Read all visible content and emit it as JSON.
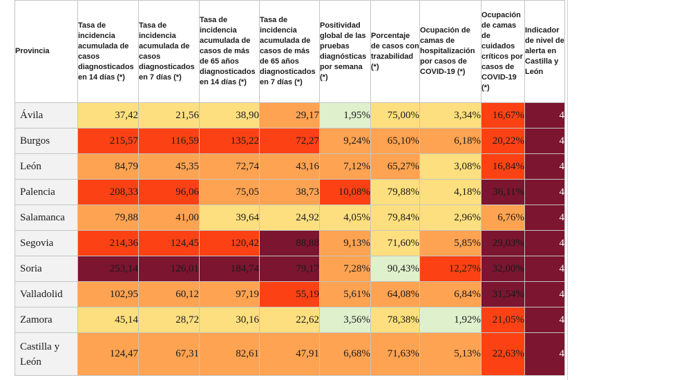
{
  "colors": {
    "dark": "#7b1530",
    "red": "#fc4214",
    "orange_dark": "#fd7d37",
    "orange": "#fea352",
    "yellow": "#fedf7f",
    "green": "#dff0cc",
    "province_bg": "#f2f2f2"
  },
  "table": {
    "headers": [
      {
        "label": "Provincia",
        "star": ""
      },
      {
        "label": "Tasa de incidencia acumulada de casos diagnosticados en 14 días",
        "star": "(*)"
      },
      {
        "label": "Tasa de incidencia acumulada de casos diagnosticados en 7 días",
        "star": "(*)"
      },
      {
        "label": "Tasa de incidencia acumulada de casos de más de 65 años diagnosticados en 14 días",
        "star": "(*)"
      },
      {
        "label": "Tasa de incidencia acumulada de casos de más de 65 años diagnosticados en 7 días",
        "star": "(*)"
      },
      {
        "label": "Positividad global de las pruebas diagnósticas por semana",
        "star": "(*)"
      },
      {
        "label": "Porcentaje de casos con trazabilidad",
        "star": "(*)"
      },
      {
        "label": "Ocupación de camas de hospitalización por casos de COVID-19",
        "star": "(*)"
      },
      {
        "label": "Ocupación de camas de cuidados críticos por casos de COVID-19",
        "star": "(*)"
      },
      {
        "label": "Indicador de nivel de alerta en Castilla y León",
        "star": ""
      }
    ],
    "rows": [
      {
        "province": "Ávila",
        "values": [
          "37,42",
          "21,56",
          "38,90",
          "29,17",
          "1,95%",
          "75,00%",
          "3,34%",
          "16,67%",
          "4"
        ],
        "levels": [
          "yellow",
          "yellow",
          "yellow",
          "orange",
          "green",
          "yellow",
          "yellow",
          "red",
          "dark"
        ]
      },
      {
        "province": "Burgos",
        "values": [
          "215,57",
          "116,59",
          "135,22",
          "72,27",
          "9,24%",
          "65,10%",
          "6,18%",
          "20,22%",
          "4"
        ],
        "levels": [
          "red",
          "red",
          "red",
          "red",
          "orange",
          "orange",
          "orange",
          "red",
          "dark"
        ]
      },
      {
        "province": "León",
        "values": [
          "84,79",
          "45,35",
          "72,74",
          "43,16",
          "7,12%",
          "65,27%",
          "3,08%",
          "16,84%",
          "4"
        ],
        "levels": [
          "orange",
          "orange",
          "orange",
          "orange",
          "orange",
          "orange",
          "yellow",
          "red",
          "dark"
        ]
      },
      {
        "province": "Palencia",
        "values": [
          "208,33",
          "96,06",
          "75,05",
          "38,73",
          "10,08%",
          "79,88%",
          "4,18%",
          "36,11%",
          "4"
        ],
        "levels": [
          "red",
          "red",
          "orange",
          "orange",
          "red",
          "yellow",
          "yellow",
          "dark",
          "dark"
        ]
      },
      {
        "province": "Salamanca",
        "values": [
          "79,88",
          "41,00",
          "39,64",
          "24,92",
          "4,05%",
          "79,84%",
          "2,96%",
          "6,76%",
          "4"
        ],
        "levels": [
          "orange",
          "orange",
          "yellow",
          "yellow",
          "yellow",
          "yellow",
          "yellow",
          "orange",
          "dark"
        ]
      },
      {
        "province": "Segovia",
        "values": [
          "214,36",
          "124,45",
          "120,42",
          "88,88",
          "9,13%",
          "71,60%",
          "5,85%",
          "29,03%",
          "4"
        ],
        "levels": [
          "red",
          "red",
          "red",
          "dark",
          "orange",
          "yellow",
          "orange",
          "dark",
          "dark"
        ]
      },
      {
        "province": "Soria",
        "values": [
          "253,14",
          "126,01",
          "184,74",
          "79,17",
          "7,28%",
          "90,43%",
          "12,27%",
          "32,00%",
          "4"
        ],
        "levels": [
          "dark",
          "dark",
          "dark",
          "dark",
          "orange",
          "green",
          "red",
          "dark",
          "dark"
        ]
      },
      {
        "province": "Valladolid",
        "values": [
          "102,95",
          "60,12",
          "97,19",
          "55,19",
          "5,61%",
          "64,08%",
          "6,84%",
          "31,54%",
          "4"
        ],
        "levels": [
          "orange",
          "orange",
          "orange",
          "red",
          "orange",
          "orange",
          "orange",
          "dark",
          "dark"
        ]
      },
      {
        "province": "Zamora",
        "values": [
          "45,14",
          "28,72",
          "30,16",
          "22,62",
          "3,56%",
          "78,38%",
          "1,92%",
          "21,05%",
          "4"
        ],
        "levels": [
          "yellow",
          "yellow",
          "yellow",
          "yellow",
          "green",
          "yellow",
          "green",
          "red",
          "dark"
        ]
      },
      {
        "province": "Castilla y León",
        "values": [
          "124,47",
          "67,31",
          "82,61",
          "47,91",
          "6,68%",
          "71,63%",
          "5,13%",
          "22,63%",
          "4"
        ],
        "levels": [
          "orange",
          "orange",
          "orange",
          "orange",
          "orange",
          "orange",
          "orange",
          "red",
          "dark"
        ]
      }
    ]
  }
}
